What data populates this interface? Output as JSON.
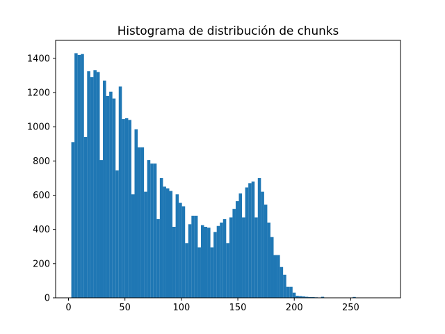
{
  "chart_data": {
    "type": "bar",
    "title": "Histograma de distribución de chunks",
    "xlabel": "",
    "ylabel": "",
    "xlim": [
      -11.4,
      294.1
    ],
    "ylim": [
      0,
      1505
    ],
    "xticks": [
      0,
      50,
      100,
      150,
      200,
      250
    ],
    "yticks": [
      0,
      200,
      400,
      600,
      800,
      1000,
      1200,
      1400
    ],
    "grid": false,
    "bar_color": "#1f77b4",
    "bin_width": 2.8,
    "bins_start": 2.5,
    "values": [
      910,
      1430,
      1420,
      1425,
      940,
      1325,
      1290,
      1330,
      1320,
      805,
      1270,
      1180,
      1205,
      1165,
      745,
      1235,
      1045,
      1050,
      1040,
      605,
      985,
      880,
      880,
      620,
      805,
      785,
      785,
      460,
      700,
      650,
      640,
      625,
      415,
      605,
      555,
      535,
      320,
      430,
      480,
      480,
      295,
      425,
      415,
      410,
      295,
      385,
      420,
      440,
      460,
      320,
      470,
      520,
      565,
      610,
      470,
      645,
      670,
      680,
      470,
      700,
      620,
      545,
      440,
      355,
      250,
      250,
      180,
      135,
      65,
      65,
      30,
      12,
      10,
      8,
      6,
      4,
      4,
      3,
      2,
      6,
      2,
      2,
      1,
      2,
      2,
      1,
      1,
      1,
      1,
      5,
      1,
      1,
      1,
      1,
      0,
      0,
      0,
      0,
      0,
      1
    ]
  }
}
